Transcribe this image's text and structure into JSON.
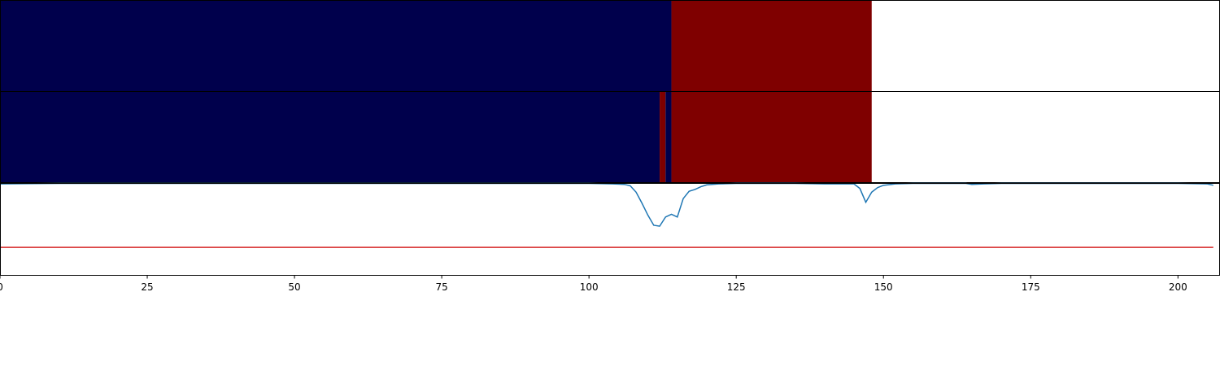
{
  "chart_data": {
    "type": "heatmap",
    "x_range": [
      0,
      207
    ],
    "x_ticks": [
      0,
      25,
      50,
      75,
      100,
      125,
      150,
      175,
      200
    ],
    "colors": {
      "class0": "#00004c",
      "class1": "#7f0000",
      "empty": "#ffffff",
      "line": "#1f77b4",
      "threshold": "#d62728"
    },
    "rows": [
      {
        "segments": [
          {
            "start": 0,
            "end": 114,
            "class": 0
          },
          {
            "start": 114,
            "end": 148,
            "class": 1
          }
        ]
      },
      {
        "segments": [
          {
            "start": 0,
            "end": 112,
            "class": 0
          },
          {
            "start": 112,
            "end": 113,
            "class": 1
          },
          {
            "start": 113,
            "end": 114,
            "class": 0
          },
          {
            "start": 114,
            "end": 148,
            "class": 1
          }
        ]
      }
    ],
    "line_panel": {
      "ylim": [
        0,
        1
      ],
      "threshold": 0.3,
      "x": [
        0,
        10,
        20,
        30,
        40,
        50,
        60,
        70,
        80,
        90,
        100,
        104,
        106,
        107,
        108,
        109,
        110,
        111,
        112,
        113,
        114,
        115,
        116,
        117,
        118,
        119,
        120,
        122,
        125,
        130,
        135,
        140,
        143,
        145,
        146,
        147,
        148,
        149,
        150,
        152,
        155,
        160,
        164,
        165,
        167,
        170,
        180,
        190,
        200,
        205,
        206
      ],
      "y": [
        0.99,
        0.995,
        0.995,
        0.995,
        0.995,
        0.995,
        0.995,
        0.995,
        0.995,
        0.995,
        0.995,
        0.99,
        0.985,
        0.97,
        0.9,
        0.78,
        0.65,
        0.54,
        0.53,
        0.63,
        0.66,
        0.63,
        0.83,
        0.91,
        0.93,
        0.96,
        0.98,
        0.99,
        0.995,
        0.995,
        0.995,
        0.99,
        0.99,
        0.99,
        0.94,
        0.79,
        0.9,
        0.95,
        0.975,
        0.99,
        0.995,
        0.995,
        0.995,
        0.985,
        0.99,
        0.995,
        0.995,
        0.995,
        0.995,
        0.99,
        0.975
      ]
    }
  }
}
